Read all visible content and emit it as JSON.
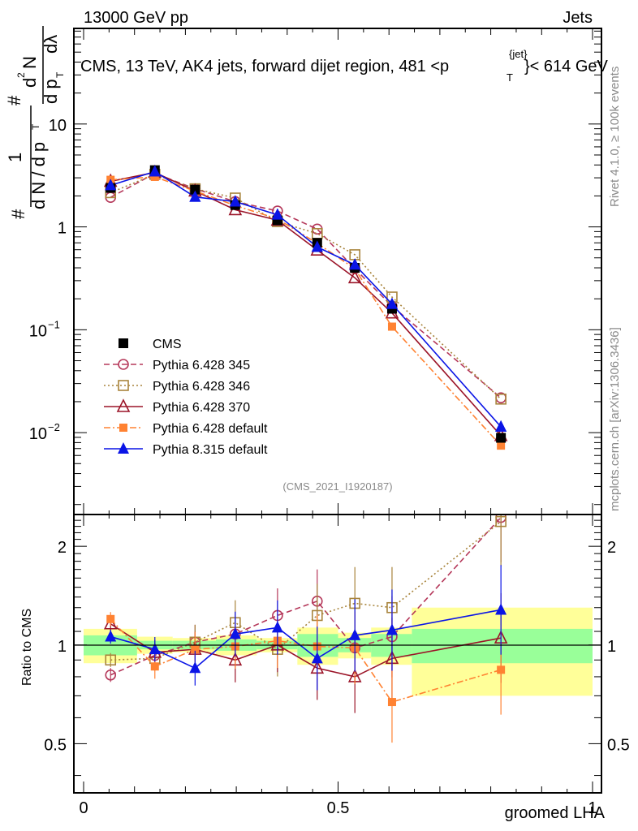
{
  "header": {
    "left": "13000 GeV pp",
    "right": "Jets"
  },
  "side_labels": {
    "rivet": "Rivet 4.1.0, ≥ 100k events",
    "mcplots": "mcplots.cern.ch [arXiv:1306.3436]"
  },
  "chart_data": {
    "type": "line",
    "title": "CMS, 13 TeV, AK4 jets, forward dijet region, 481 <p_T^{jet}< 614 GeV",
    "title_parts": {
      "main": "CMS, 13 TeV, AK4 jets, forward dijet region, 481 <p",
      "sup": "{jet}",
      "sub": "T",
      "tail": "}< 614 GeV"
    },
    "analysis_id": "(CMS_2021_I1920187)",
    "xlabel": "groomed LHA",
    "ylabel_main": "1/N dN/dp_T d²N/dp_T dλ",
    "ylabel_ratio": "Ratio to CMS",
    "xlim": [
      0,
      1
    ],
    "ylim_main": [
      0.0016,
      85
    ],
    "ylim_ratio": [
      0.354,
      2.5
    ],
    "yscale": "log",
    "x_ticks": [
      {
        "v": 0,
        "label": "0"
      },
      {
        "v": 0.5,
        "label": "0.5"
      },
      {
        "v": 1,
        "label": "1"
      }
    ],
    "y_ticks_main": [
      {
        "v": 10,
        "label": "10"
      },
      {
        "v": 1,
        "label": "1"
      },
      {
        "v": 0.1,
        "label": "10",
        "exp": "−1"
      },
      {
        "v": 0.01,
        "label": "10",
        "exp": "−2"
      }
    ],
    "y_ticks_ratio": [
      {
        "v": 2,
        "label": "2"
      },
      {
        "v": 1,
        "label": "1"
      },
      {
        "v": 0.5,
        "label": "0.5"
      }
    ],
    "legend_position": "bottom-left",
    "bin_edges": [
      0,
      0.105,
      0.175,
      0.26,
      0.34,
      0.42,
      0.5,
      0.565,
      0.645,
      1.0
    ],
    "x": [
      0.053,
      0.14,
      0.219,
      0.298,
      0.381,
      0.459,
      0.533,
      0.606,
      0.82
    ],
    "cms": {
      "name": "CMS",
      "values": [
        2.39,
        3.56,
        2.3,
        1.63,
        1.16,
        0.7,
        0.4,
        0.16,
        0.0089
      ],
      "band_stat": [
        0.07,
        0.03,
        0.03,
        0.04,
        0.03,
        0.08,
        0.05,
        0.08,
        0.12
      ],
      "band_total": [
        0.12,
        0.06,
        0.05,
        0.07,
        0.05,
        0.13,
        0.09,
        0.13,
        0.3
      ]
    },
    "series": [
      {
        "name": "Pythia 6.428 345",
        "color": "#b5385a",
        "style": "dashed",
        "marker": "open-circle",
        "ratio": [
          0.81,
          0.93,
          1.02,
          1.08,
          1.23,
          1.36,
          0.98,
          1.06,
          2.45
        ]
      },
      {
        "name": "Pythia 6.428 346",
        "color": "#a8843c",
        "style": "dotted",
        "marker": "open-square",
        "ratio": [
          0.9,
          0.91,
          1.02,
          1.17,
          0.97,
          1.23,
          1.34,
          1.3,
          2.38
        ]
      },
      {
        "name": "Pythia 6.428 370",
        "color": "#9b1428",
        "style": "solid",
        "marker": "open-triangle",
        "ratio": [
          1.16,
          0.95,
          0.97,
          0.9,
          1.0,
          0.85,
          0.8,
          0.91,
          1.05
        ]
      },
      {
        "name": "Pythia 6.428 default",
        "color": "#ff8232",
        "style": "dashdot",
        "marker": "filled-square",
        "ratio": [
          1.2,
          0.86,
          0.97,
          0.99,
          1.03,
          0.99,
          0.98,
          0.67,
          0.84
        ]
      },
      {
        "name": "Pythia 8.315 default",
        "color": "#0a14e6",
        "style": "solid",
        "marker": "filled-triangle",
        "ratio": [
          1.06,
          0.97,
          0.85,
          1.08,
          1.13,
          0.91,
          1.07,
          1.11,
          1.28
        ]
      }
    ]
  }
}
